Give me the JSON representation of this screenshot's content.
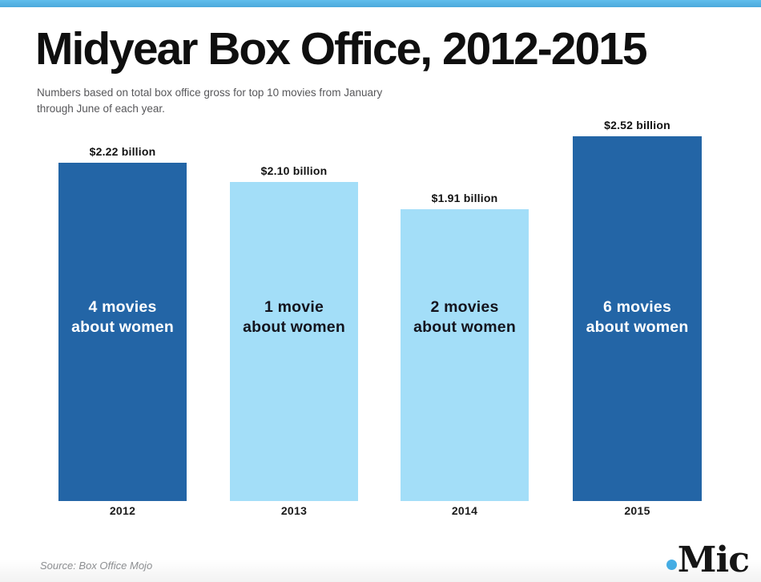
{
  "theme": {
    "top_strip_color": "#55b4e8",
    "dark_bar_color": "#2365a6",
    "light_bar_color": "#a3def8",
    "mic_dot_color": "#45aee6"
  },
  "header": {
    "title": "Midyear Box Office, 2012-2015",
    "subtitle_line1": "Numbers based on total box office gross for top 10 movies from January",
    "subtitle_line2": "through June of each year."
  },
  "chart_data": {
    "type": "bar",
    "title": "Midyear Box Office, 2012-2015",
    "categories": [
      "2012",
      "2013",
      "2014",
      "2015"
    ],
    "values": [
      2.22,
      2.1,
      1.91,
      2.52
    ],
    "unit": "billion USD",
    "value_labels": [
      "$2.22 billion",
      "$2.10 billion",
      "$1.91 billion",
      "$2.52 billion"
    ],
    "annotations": [
      "4 movies about women",
      "1 movie about women",
      "2 movies about women",
      "6 movies about women"
    ],
    "movies_about_women": [
      4,
      1,
      2,
      6
    ],
    "bar_colors": [
      "#2365a6",
      "#a3def8",
      "#a3def8",
      "#2365a6"
    ],
    "grid": false,
    "legend": false,
    "xlabel": "",
    "ylabel": ""
  },
  "bars": [
    {
      "year": "2012",
      "value_label": "$2.22 billion",
      "label_line1": "4 movies",
      "label_line2": "about women"
    },
    {
      "year": "2013",
      "value_label": "$2.10 billion",
      "label_line1": "1 movie",
      "label_line2": "about women"
    },
    {
      "year": "2014",
      "value_label": "$1.91 billion",
      "label_line1": "2 movies",
      "label_line2": "about women"
    },
    {
      "year": "2015",
      "value_label": "$2.52 billion",
      "label_line1": "6 movies",
      "label_line2": "about women"
    }
  ],
  "footer": {
    "source": "Source: Box Office Mojo",
    "logo_text": "Mic"
  }
}
